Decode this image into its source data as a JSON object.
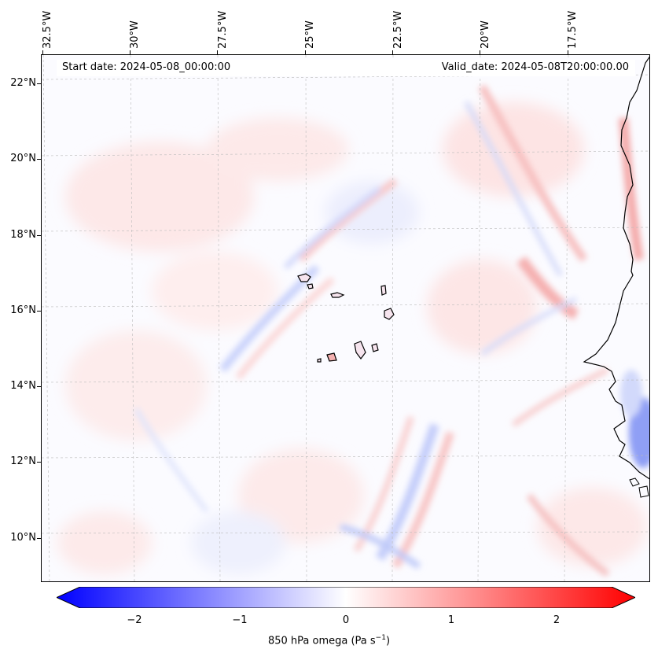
{
  "map": {
    "title_start": "Start date: 2024-05-08_00:00:00",
    "title_valid": "Valid_date: 2024-05-08T20:00:00.00",
    "lon_labels": [
      "32.5°W",
      "30°W",
      "27.5°W",
      "25°W",
      "22.5°W",
      "20°W",
      "17.5°W"
    ],
    "lat_labels": [
      "22°N",
      "20°N",
      "18°N",
      "16°N",
      "14°N",
      "12°N",
      "10°N"
    ],
    "extent": {
      "lon_min": -32.6,
      "lon_max": -15.6,
      "lat_min": 8.9,
      "lat_max": 22.8
    },
    "variable": "850 hPa omega",
    "units": "Pa s⁻¹"
  },
  "colorbar": {
    "label": "850 hPa omega (Pa s",
    "label_sup": "−1",
    "label_end": ")",
    "ticks": [
      "−2",
      "−1",
      "0",
      "1",
      "2"
    ],
    "tick_values": [
      -2,
      -1,
      0,
      1,
      2
    ],
    "vmin": -2.6,
    "vmax": 2.6,
    "colormap": "bwr",
    "colors": {
      "low": "#0000ff",
      "mid": "#ffffff",
      "high": "#ff0000"
    }
  },
  "colors": {
    "coastline": "#000000",
    "gridline": "#bbbbbb"
  }
}
